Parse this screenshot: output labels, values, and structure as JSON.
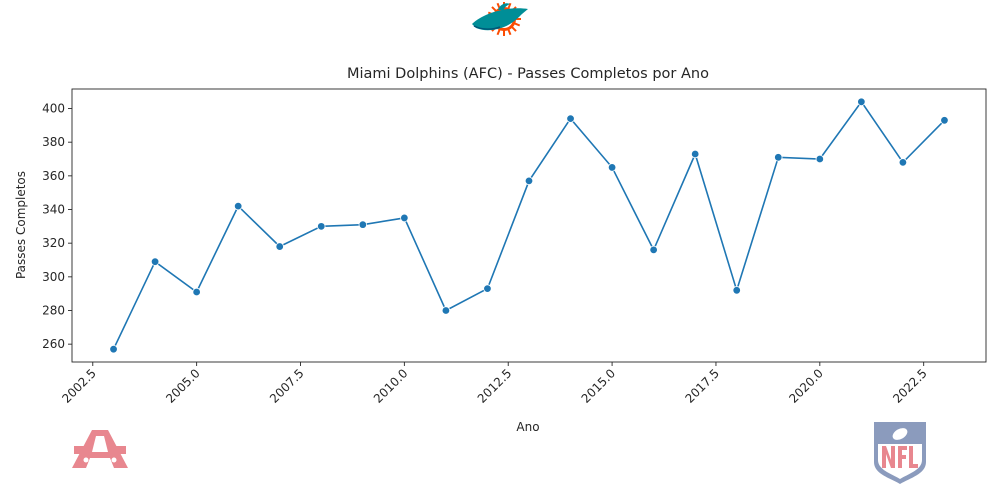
{
  "chart_data": {
    "type": "line",
    "title": "Miami Dolphins (AFC) - Passes Completos por Ano",
    "xlabel": "Ano",
    "ylabel": "Passes Completos",
    "x": [
      2003,
      2004,
      2005,
      2006,
      2007,
      2008,
      2009,
      2010,
      2011,
      2012,
      2013,
      2014,
      2015,
      2016,
      2017,
      2018,
      2019,
      2020,
      2021,
      2022,
      2023
    ],
    "values": [
      257,
      309,
      291,
      342,
      318,
      330,
      331,
      335,
      280,
      293,
      357,
      394,
      365,
      316,
      373,
      292,
      371,
      370,
      404,
      368,
      393
    ],
    "xlim": [
      2002.0,
      2024.0
    ],
    "ylim": [
      249.4,
      411.6
    ],
    "xticks": [
      "2002.5",
      "2005.0",
      "2007.5",
      "2010.0",
      "2012.5",
      "2015.0",
      "2017.5",
      "2020.0",
      "2022.5"
    ],
    "yticks": [
      "260",
      "280",
      "300",
      "320",
      "340",
      "360",
      "380",
      "400"
    ],
    "grid": false,
    "line_color": "#1f77b4"
  },
  "logos": {
    "team": "Dolphins logo",
    "conference": "AFC",
    "league": "NFL",
    "team_colors": [
      "#008E97",
      "#FC4C02",
      "#005778"
    ],
    "conference_color": "#e8878f",
    "league_colors": [
      "#8b9bbd",
      "#e8878f"
    ]
  }
}
